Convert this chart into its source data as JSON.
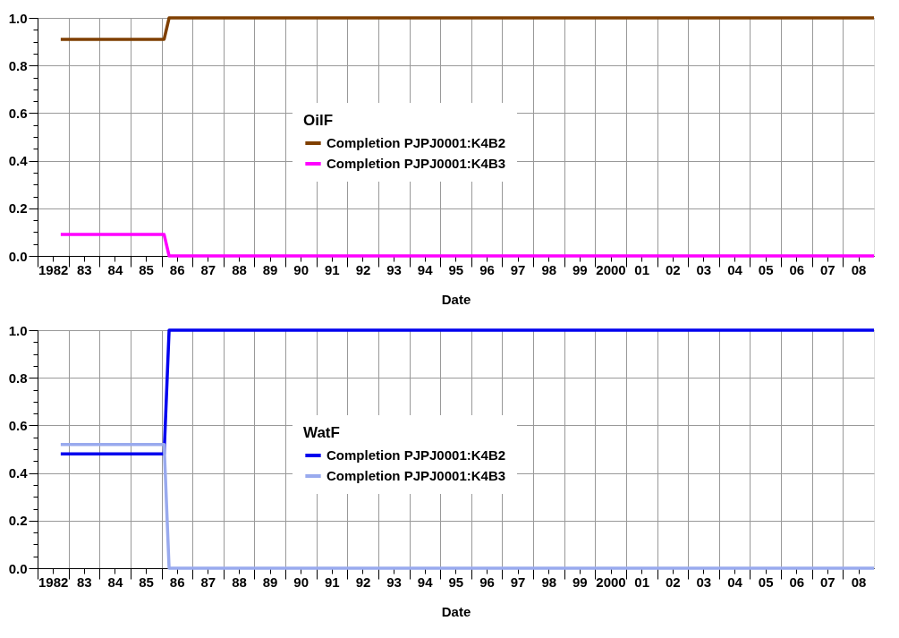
{
  "chart_data": [
    {
      "type": "line",
      "legend_title": "OilF",
      "xlabel": "Date",
      "legend": "center",
      "grid": true,
      "xlim": [
        "1982",
        "2009"
      ],
      "ylim": [
        0,
        1
      ],
      "xticks": [
        {
          "value": "1982",
          "label": null
        },
        {
          "value": "1982-07",
          "label": "1982"
        },
        {
          "value": "1983",
          "label": null
        },
        {
          "value": "1983-07",
          "label": "83"
        },
        {
          "value": "1984",
          "label": null
        },
        {
          "value": "1984-07",
          "label": "84"
        },
        {
          "value": "1985",
          "label": null
        },
        {
          "value": "1985-07",
          "label": "85"
        },
        {
          "value": "1986",
          "label": null
        },
        {
          "value": "1986-07",
          "label": "86"
        },
        {
          "value": "1987",
          "label": null
        },
        {
          "value": "1987-07",
          "label": "87"
        },
        {
          "value": "1988",
          "label": null
        },
        {
          "value": "1988-07",
          "label": "88"
        },
        {
          "value": "1989",
          "label": null
        },
        {
          "value": "1989-07",
          "label": "89"
        },
        {
          "value": "1990",
          "label": null
        },
        {
          "value": "1990-07",
          "label": "90"
        },
        {
          "value": "1991",
          "label": null
        },
        {
          "value": "1991-07",
          "label": "91"
        },
        {
          "value": "1992",
          "label": null
        },
        {
          "value": "1992-07",
          "label": "92"
        },
        {
          "value": "1993",
          "label": null
        },
        {
          "value": "1993-07",
          "label": "93"
        },
        {
          "value": "1994",
          "label": null
        },
        {
          "value": "1994-07",
          "label": "94"
        },
        {
          "value": "1995",
          "label": null
        },
        {
          "value": "1995-07",
          "label": "95"
        },
        {
          "value": "1996",
          "label": null
        },
        {
          "value": "1996-07",
          "label": "96"
        },
        {
          "value": "1997",
          "label": null
        },
        {
          "value": "1997-07",
          "label": "97"
        },
        {
          "value": "1998",
          "label": null
        },
        {
          "value": "1998-07",
          "label": "98"
        },
        {
          "value": "1999",
          "label": null
        },
        {
          "value": "1999-07",
          "label": "99"
        },
        {
          "value": "2000",
          "label": null
        },
        {
          "value": "2000-07",
          "label": "2000"
        },
        {
          "value": "2001",
          "label": null
        },
        {
          "value": "2001-07",
          "label": "01"
        },
        {
          "value": "2002",
          "label": null
        },
        {
          "value": "2002-07",
          "label": "02"
        },
        {
          "value": "2003",
          "label": null
        },
        {
          "value": "2003-07",
          "label": "03"
        },
        {
          "value": "2004",
          "label": null
        },
        {
          "value": "2004-07",
          "label": "04"
        },
        {
          "value": "2005",
          "label": null
        },
        {
          "value": "2005-07",
          "label": "05"
        },
        {
          "value": "2006",
          "label": null
        },
        {
          "value": "2006-07",
          "label": "06"
        },
        {
          "value": "2007",
          "label": null
        },
        {
          "value": "2007-07",
          "label": "07"
        },
        {
          "value": "2008",
          "label": null
        },
        {
          "value": "2008-07",
          "label": "08"
        }
      ],
      "yticks": [
        {
          "value": 0,
          "label": "0.0"
        },
        {
          "value": 0.05,
          "label": null
        },
        {
          "value": 0.1,
          "label": null
        },
        {
          "value": 0.15,
          "label": null
        },
        {
          "value": 0.2,
          "label": "0.2"
        },
        {
          "value": 0.25,
          "label": null
        },
        {
          "value": 0.3,
          "label": null
        },
        {
          "value": 0.35,
          "label": null
        },
        {
          "value": 0.4,
          "label": "0.4"
        },
        {
          "value": 0.45,
          "label": null
        },
        {
          "value": 0.5,
          "label": null
        },
        {
          "value": 0.55,
          "label": null
        },
        {
          "value": 0.6,
          "label": "0.6"
        },
        {
          "value": 0.65,
          "label": null
        },
        {
          "value": 0.7,
          "label": null
        },
        {
          "value": 0.75,
          "label": null
        },
        {
          "value": 0.8,
          "label": "0.8"
        },
        {
          "value": 0.85,
          "label": null
        },
        {
          "value": 0.9,
          "label": null
        },
        {
          "value": 0.95,
          "label": null
        },
        {
          "value": 1,
          "label": "1.0"
        }
      ],
      "series": [
        {
          "name": "Completion PJPJ0001:K4B2",
          "color": "#7f3f00",
          "x": [
            "1982-10",
            "1986-02",
            "1986-04",
            "2009"
          ],
          "values": [
            0.91,
            0.91,
            1.0,
            1.0
          ]
        },
        {
          "name": "Completion PJPJ0001:K4B3",
          "color": "#ff00ff",
          "x": [
            "1982-10",
            "1986-02",
            "1986-04",
            "2009"
          ],
          "values": [
            0.09,
            0.09,
            0.0,
            0.0
          ]
        }
      ]
    },
    {
      "type": "line",
      "legend_title": "WatF",
      "xlabel": "Date",
      "legend": "center",
      "grid": true,
      "xlim": [
        "1982",
        "2009"
      ],
      "ylim": [
        0,
        1
      ],
      "xticks": [
        {
          "value": "1982",
          "label": null
        },
        {
          "value": "1982-07",
          "label": "1982"
        },
        {
          "value": "1983",
          "label": null
        },
        {
          "value": "1983-07",
          "label": "83"
        },
        {
          "value": "1984",
          "label": null
        },
        {
          "value": "1984-07",
          "label": "84"
        },
        {
          "value": "1985",
          "label": null
        },
        {
          "value": "1985-07",
          "label": "85"
        },
        {
          "value": "1986",
          "label": null
        },
        {
          "value": "1986-07",
          "label": "86"
        },
        {
          "value": "1987",
          "label": null
        },
        {
          "value": "1987-07",
          "label": "87"
        },
        {
          "value": "1988",
          "label": null
        },
        {
          "value": "1988-07",
          "label": "88"
        },
        {
          "value": "1989",
          "label": null
        },
        {
          "value": "1989-07",
          "label": "89"
        },
        {
          "value": "1990",
          "label": null
        },
        {
          "value": "1990-07",
          "label": "90"
        },
        {
          "value": "1991",
          "label": null
        },
        {
          "value": "1991-07",
          "label": "91"
        },
        {
          "value": "1992",
          "label": null
        },
        {
          "value": "1992-07",
          "label": "92"
        },
        {
          "value": "1993",
          "label": null
        },
        {
          "value": "1993-07",
          "label": "93"
        },
        {
          "value": "1994",
          "label": null
        },
        {
          "value": "1994-07",
          "label": "94"
        },
        {
          "value": "1995",
          "label": null
        },
        {
          "value": "1995-07",
          "label": "95"
        },
        {
          "value": "1996",
          "label": null
        },
        {
          "value": "1996-07",
          "label": "96"
        },
        {
          "value": "1997",
          "label": null
        },
        {
          "value": "1997-07",
          "label": "97"
        },
        {
          "value": "1998",
          "label": null
        },
        {
          "value": "1998-07",
          "label": "98"
        },
        {
          "value": "1999",
          "label": null
        },
        {
          "value": "1999-07",
          "label": "99"
        },
        {
          "value": "2000",
          "label": null
        },
        {
          "value": "2000-07",
          "label": "2000"
        },
        {
          "value": "2001",
          "label": null
        },
        {
          "value": "2001-07",
          "label": "01"
        },
        {
          "value": "2002",
          "label": null
        },
        {
          "value": "2002-07",
          "label": "02"
        },
        {
          "value": "2003",
          "label": null
        },
        {
          "value": "2003-07",
          "label": "03"
        },
        {
          "value": "2004",
          "label": null
        },
        {
          "value": "2004-07",
          "label": "04"
        },
        {
          "value": "2005",
          "label": null
        },
        {
          "value": "2005-07",
          "label": "05"
        },
        {
          "value": "2006",
          "label": null
        },
        {
          "value": "2006-07",
          "label": "06"
        },
        {
          "value": "2007",
          "label": null
        },
        {
          "value": "2007-07",
          "label": "07"
        },
        {
          "value": "2008",
          "label": null
        },
        {
          "value": "2008-07",
          "label": "08"
        }
      ],
      "yticks": [
        {
          "value": 0,
          "label": "0.0"
        },
        {
          "value": 0.05,
          "label": null
        },
        {
          "value": 0.1,
          "label": null
        },
        {
          "value": 0.15,
          "label": null
        },
        {
          "value": 0.2,
          "label": "0.2"
        },
        {
          "value": 0.25,
          "label": null
        },
        {
          "value": 0.3,
          "label": null
        },
        {
          "value": 0.35,
          "label": null
        },
        {
          "value": 0.4,
          "label": "0.4"
        },
        {
          "value": 0.45,
          "label": null
        },
        {
          "value": 0.5,
          "label": null
        },
        {
          "value": 0.55,
          "label": null
        },
        {
          "value": 0.6,
          "label": "0.6"
        },
        {
          "value": 0.65,
          "label": null
        },
        {
          "value": 0.7,
          "label": null
        },
        {
          "value": 0.75,
          "label": null
        },
        {
          "value": 0.8,
          "label": "0.8"
        },
        {
          "value": 0.85,
          "label": null
        },
        {
          "value": 0.9,
          "label": null
        },
        {
          "value": 0.95,
          "label": null
        },
        {
          "value": 1,
          "label": "1.0"
        }
      ],
      "series": [
        {
          "name": "Completion PJPJ0001:K4B2",
          "color": "#0000ee",
          "x": [
            "1982-10",
            "1986-02",
            "1986-04",
            "2009"
          ],
          "values": [
            0.48,
            0.48,
            1.0,
            1.0
          ]
        },
        {
          "name": "Completion PJPJ0001:K4B3",
          "color": "#99aaee",
          "x": [
            "1982-10",
            "1986-02",
            "1986-04",
            "2009"
          ],
          "values": [
            0.52,
            0.52,
            0.0,
            0.0
          ]
        }
      ]
    }
  ]
}
